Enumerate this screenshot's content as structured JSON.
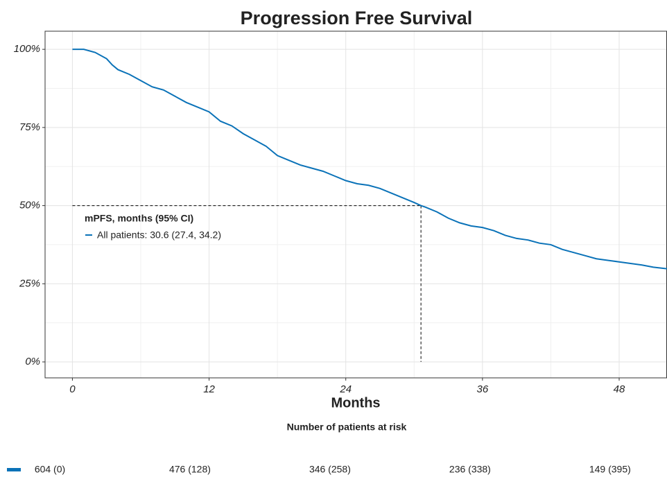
{
  "chart_data": {
    "type": "line",
    "title": "Progression Free Survival",
    "x_label": "Months",
    "xlim": [
      -2.4,
      52.2
    ],
    "ylim": [
      -5.1,
      105.8
    ],
    "xticks": [
      0,
      12,
      24,
      36,
      48
    ],
    "yticks": [
      {
        "value": 0,
        "label": "0%"
      },
      {
        "value": 25,
        "label": "25%"
      },
      {
        "value": 50,
        "label": "50%"
      },
      {
        "value": 75,
        "label": "75%"
      },
      {
        "value": 100,
        "label": "100%"
      }
    ],
    "x_minor_grid": [
      6,
      18,
      30,
      42
    ],
    "y_minor_grid": [
      12.5,
      37.5,
      62.5,
      87.5
    ],
    "grid": true,
    "legend_title": "mPFS, months (95% CI)",
    "series": [
      {
        "name": "All patients: 30.6 (27.4, 34.2)",
        "color": "#0a72b8",
        "x": [
          0,
          1,
          2,
          3,
          3.5,
          4,
          5,
          6,
          7,
          8,
          9,
          10,
          11,
          12,
          13,
          14,
          15,
          16,
          17,
          18,
          19,
          20,
          21,
          22,
          23,
          24,
          25,
          26,
          27,
          28,
          29,
          30,
          30.6,
          31,
          32,
          33,
          34,
          35,
          36,
          37,
          38,
          39,
          40,
          41,
          42,
          43,
          44,
          45,
          46,
          47,
          48,
          49,
          50,
          51,
          52.2
        ],
        "values": [
          100,
          100,
          99,
          97,
          95,
          93.5,
          92,
          90,
          88,
          87,
          85,
          83,
          81.5,
          80,
          77,
          75.5,
          73,
          71,
          69,
          66,
          64.5,
          63,
          62,
          61,
          59.5,
          58,
          57,
          56.5,
          55.5,
          54,
          52.5,
          51,
          50,
          49.5,
          48,
          46,
          44.5,
          43.5,
          43,
          42,
          40.5,
          39.5,
          39,
          38,
          37.5,
          36,
          35,
          34,
          33,
          32.5,
          32,
          31.5,
          31,
          30.3,
          29.8
        ]
      }
    ],
    "median": {
      "x": 30.6,
      "y": 50
    },
    "risk_table": {
      "title": "Number of patients at risk",
      "times": [
        0,
        12,
        24,
        36,
        48
      ],
      "labels": [
        "604 (0)",
        "476 (128)",
        "346 (258)",
        "236 (338)",
        "149 (395)"
      ]
    }
  }
}
